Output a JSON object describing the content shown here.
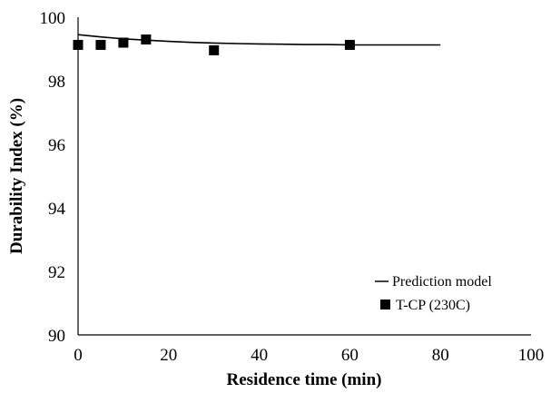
{
  "chart_data": {
    "type": "scatter",
    "title": "",
    "xlabel": "Residence time (min)",
    "ylabel": "Durability Index (%)",
    "xlim": [
      0,
      100
    ],
    "ylim": [
      90,
      100
    ],
    "xticks": [
      0,
      20,
      40,
      60,
      80,
      100
    ],
    "yticks": [
      90,
      92,
      94,
      96,
      98,
      100
    ],
    "grid": false,
    "legend_position": "bottom-right",
    "series": [
      {
        "name": "Prediction model",
        "kind": "line",
        "color": "#000000",
        "x": [
          0,
          5,
          10,
          15,
          20,
          25,
          30,
          35,
          40,
          45,
          50,
          55,
          60,
          65,
          70,
          75,
          80
        ],
        "y": [
          99.45,
          99.38,
          99.32,
          99.28,
          99.24,
          99.21,
          99.19,
          99.17,
          99.16,
          99.15,
          99.14,
          99.14,
          99.13,
          99.13,
          99.13,
          99.13,
          99.13
        ]
      },
      {
        "name": "T-CP (230C)",
        "kind": "marker",
        "marker": "square",
        "color": "#000000",
        "x": [
          0,
          5,
          10,
          15,
          30,
          60
        ],
        "y": [
          99.13,
          99.13,
          99.2,
          99.3,
          98.96,
          99.13
        ]
      }
    ]
  }
}
